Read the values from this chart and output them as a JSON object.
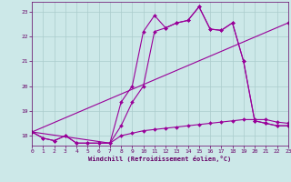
{
  "xlabel": "Windchill (Refroidissement éolien,°C)",
  "bg_color": "#cce8e8",
  "grid_color": "#aacccc",
  "line_color": "#990099",
  "xlim": [
    0,
    23
  ],
  "ylim": [
    17.6,
    23.4
  ],
  "yticks": [
    18,
    19,
    20,
    21,
    22,
    23
  ],
  "xticks": [
    0,
    1,
    2,
    3,
    4,
    5,
    6,
    7,
    8,
    9,
    10,
    11,
    12,
    13,
    14,
    15,
    16,
    17,
    18,
    19,
    20,
    21,
    22,
    23
  ],
  "series": [
    {
      "x": [
        0,
        1,
        2,
        3,
        4,
        5,
        6,
        7,
        8,
        9,
        10,
        11,
        12,
        13,
        14,
        15,
        16,
        17,
        18,
        19,
        20,
        21,
        22,
        23
      ],
      "y": [
        18.15,
        17.9,
        17.8,
        18.0,
        17.7,
        17.7,
        17.7,
        17.7,
        19.35,
        20.0,
        22.2,
        22.85,
        22.35,
        22.55,
        22.65,
        23.2,
        22.3,
        22.25,
        22.55,
        21.0,
        18.6,
        18.5,
        18.4,
        18.4
      ]
    },
    {
      "x": [
        0,
        1,
        2,
        3,
        4,
        5,
        6,
        7,
        8,
        9,
        10,
        11,
        12,
        13,
        14,
        15,
        16,
        17,
        18,
        19,
        20,
        21,
        22,
        23
      ],
      "y": [
        18.15,
        17.9,
        17.8,
        18.0,
        17.7,
        17.7,
        17.7,
        17.7,
        18.4,
        19.35,
        20.0,
        22.2,
        22.35,
        22.55,
        22.65,
        23.2,
        22.3,
        22.25,
        22.55,
        21.0,
        18.6,
        18.5,
        18.4,
        18.4
      ]
    },
    {
      "x": [
        0,
        23
      ],
      "y": [
        18.15,
        22.55
      ]
    },
    {
      "x": [
        0,
        7,
        8,
        9,
        10,
        11,
        12,
        13,
        14,
        15,
        16,
        17,
        18,
        19,
        20,
        21,
        22,
        23
      ],
      "y": [
        18.15,
        17.7,
        18.0,
        18.1,
        18.2,
        18.25,
        18.3,
        18.35,
        18.4,
        18.45,
        18.5,
        18.55,
        18.6,
        18.65,
        18.65,
        18.65,
        18.55,
        18.5
      ]
    }
  ]
}
